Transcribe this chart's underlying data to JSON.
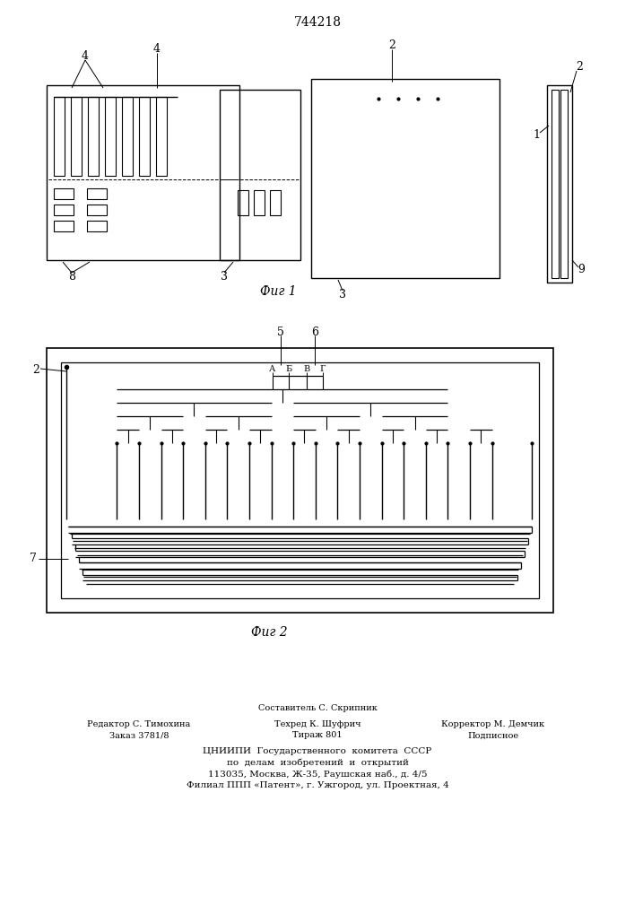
{
  "title": "744218",
  "fig1_caption": "Фиг 1",
  "fig2_caption": "Фиг 2",
  "bg_color": "#ffffff",
  "lc": "#000000"
}
